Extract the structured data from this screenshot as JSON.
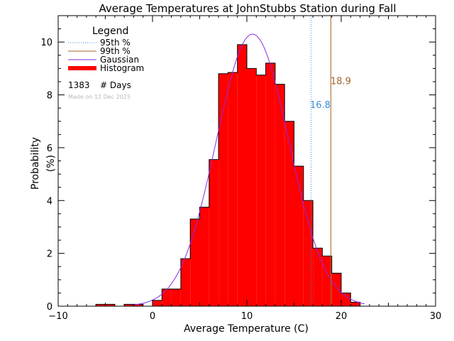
{
  "chart_data": {
    "type": "bar",
    "title": "Average Temperatures at JohnStubbs Station during Fall",
    "xlabel": "Average Temperature (C)",
    "ylabel": "Probability\n(%)",
    "xlim": [
      -10,
      30
    ],
    "ylim": [
      0,
      11
    ],
    "xticks": [
      -10,
      0,
      10,
      20,
      30
    ],
    "yticks": [
      0,
      2,
      4,
      6,
      8,
      10
    ],
    "legend": {
      "title": "Legend",
      "entries": [
        {
          "label": "95th %",
          "color": "#3a8fd8",
          "style": "dotted"
        },
        {
          "label": "99th %",
          "color": "#a0632a",
          "style": "solid"
        },
        {
          "label": "Gaussian",
          "color": "#8a2be2",
          "style": "solid"
        },
        {
          "label": "Histogram",
          "color": "#ff0000",
          "style": "thick"
        }
      ],
      "count_value": "1383",
      "count_label": "# Days",
      "made_on": "Made on 12 Dec 2025",
      "placement": "top-left"
    },
    "percentile_95": {
      "value": 16.8,
      "label": "16.8",
      "color": "#3a8fd8"
    },
    "percentile_99": {
      "value": 18.9,
      "label": "18.9",
      "color": "#a0632a"
    },
    "histogram": {
      "bin_width": 1,
      "color": "#ff0000",
      "bins": [
        {
          "left": -6,
          "value": 0.07
        },
        {
          "left": -5,
          "value": 0.07
        },
        {
          "left": -3,
          "value": 0.07
        },
        {
          "left": -2,
          "value": 0.07
        },
        {
          "left": 0,
          "value": 0.22
        },
        {
          "left": 1,
          "value": 0.65
        },
        {
          "left": 2,
          "value": 0.65
        },
        {
          "left": 3,
          "value": 1.8
        },
        {
          "left": 4,
          "value": 3.3
        },
        {
          "left": 5,
          "value": 3.75
        },
        {
          "left": 6,
          "value": 5.55
        },
        {
          "left": 7,
          "value": 8.8
        },
        {
          "left": 8,
          "value": 8.85
        },
        {
          "left": 9,
          "value": 9.9
        },
        {
          "left": 10,
          "value": 9.0
        },
        {
          "left": 11,
          "value": 8.75
        },
        {
          "left": 12,
          "value": 9.2
        },
        {
          "left": 13,
          "value": 8.4
        },
        {
          "left": 14,
          "value": 7.0
        },
        {
          "left": 15,
          "value": 5.3
        },
        {
          "left": 16,
          "value": 4.0
        },
        {
          "left": 17,
          "value": 2.2
        },
        {
          "left": 18,
          "value": 1.9
        },
        {
          "left": 19,
          "value": 1.25
        },
        {
          "left": 20,
          "value": 0.5
        },
        {
          "left": 21,
          "value": 0.15
        }
      ]
    },
    "gaussian": {
      "mean": 10.6,
      "sigma": 3.85,
      "peak": 10.3,
      "range": [
        -2,
        22.5
      ],
      "color": "#8a2be2"
    }
  }
}
